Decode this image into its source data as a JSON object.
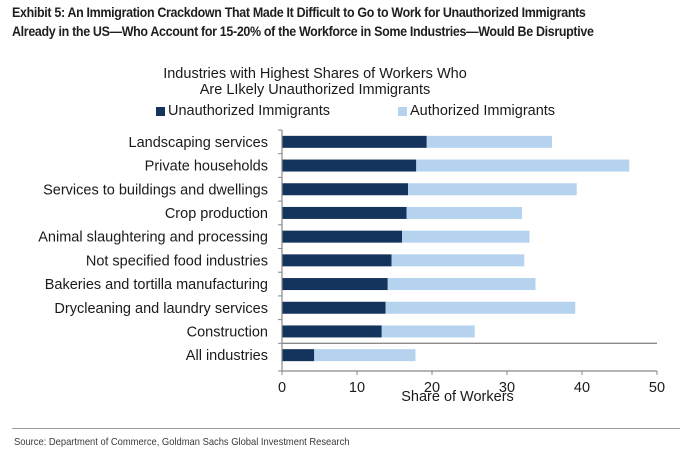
{
  "exhibit": {
    "title_line1": "Exhibit 5: An Immigration Crackdown That Made It Difficult to Go to Work for Unauthorized Immigrants",
    "title_line2": "Already in the US—Who Account for 15-20% of the Workforce in Some Industries—Would Be Disruptive"
  },
  "source": "Source: Department of Commerce, Goldman Sachs Global Investment Research",
  "colors": {
    "unauthorized": "#14345e",
    "authorized": "#b5d3ee",
    "axis": "#888888",
    "text": "#1a1a1a"
  },
  "chart_data": {
    "type": "bar",
    "orientation": "horizontal",
    "stacked": true,
    "title": "Industries with Highest Shares of Workers Who Are LIkely Unauthorized Immigrants",
    "title_line1": "Industries with Highest Shares of Workers Who",
    "title_line2": "Are LIkely Unauthorized Immigrants",
    "xlabel": "Share of Workers",
    "ylabel": "",
    "xlim": [
      0,
      50
    ],
    "xticks": [
      0,
      10,
      20,
      30,
      40,
      50
    ],
    "grid": false,
    "legend_position": "top",
    "categories": [
      "Landscaping services",
      "Private households",
      "Services to buildings and dwellings",
      "Crop production",
      "Animal slaughtering and processing",
      "Not specified food industries",
      "Bakeries and tortilla manufacturing",
      "Drycleaning and laundry services",
      "Construction",
      "All industries"
    ],
    "series": [
      {
        "name": "Unauthorized Immigrants",
        "values": [
          19.3,
          17.9,
          16.8,
          16.6,
          16.0,
          14.6,
          14.1,
          13.8,
          13.3,
          4.3
        ]
      },
      {
        "name": "Authorized Immigrants",
        "values": [
          16.7,
          28.4,
          22.5,
          15.4,
          17.0,
          17.7,
          19.7,
          25.3,
          12.4,
          13.5
        ]
      }
    ]
  }
}
